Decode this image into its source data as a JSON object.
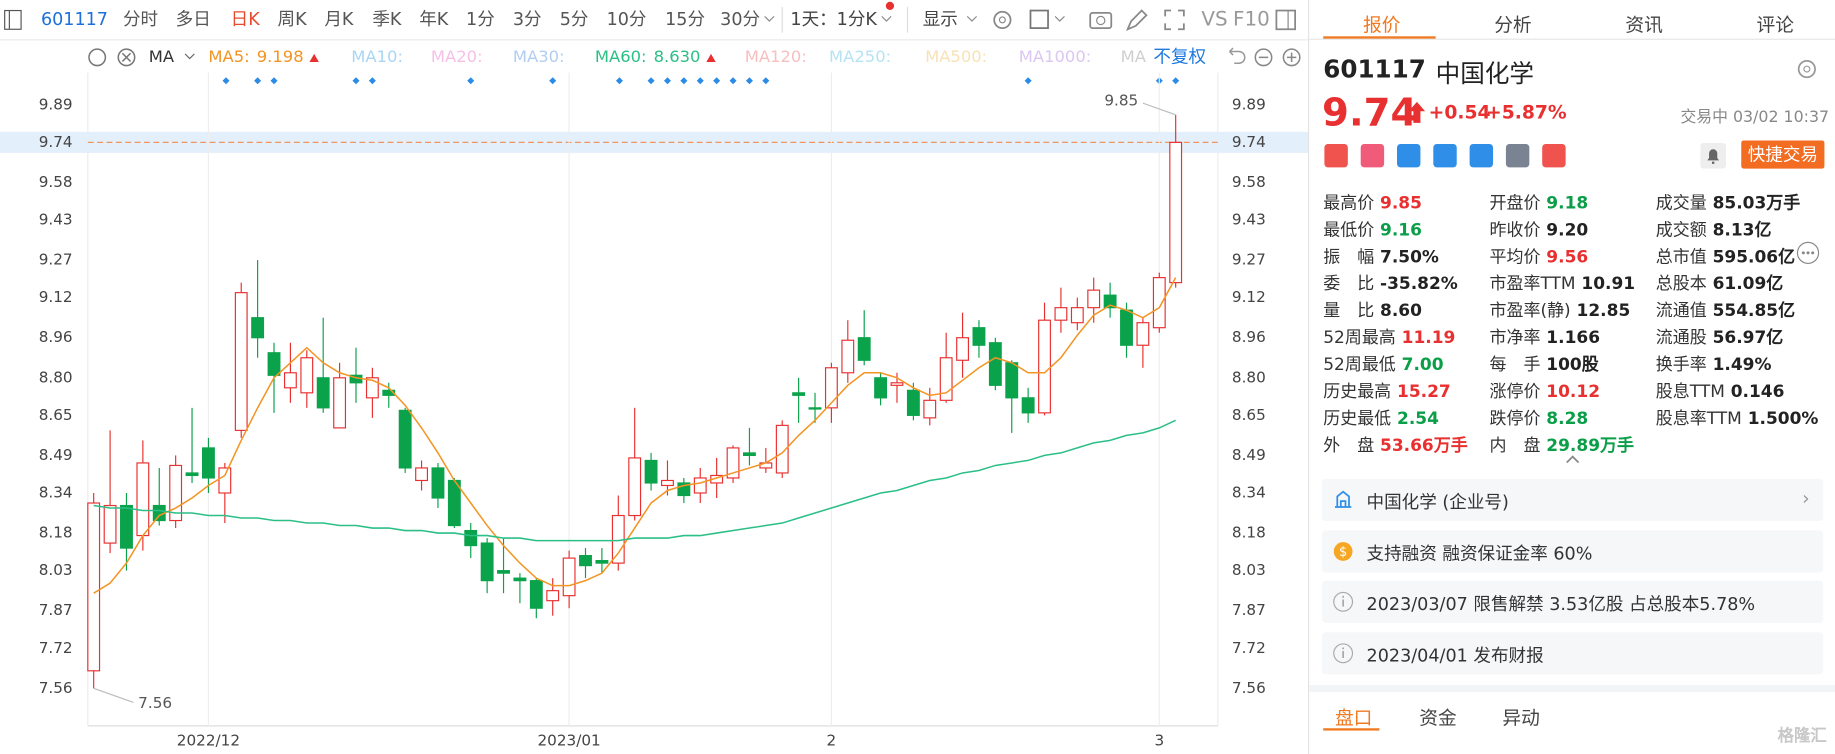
{
  "toolbar": {
    "code": "601117",
    "periods": [
      "分时",
      "多日",
      "日K",
      "周K",
      "月K",
      "季K",
      "年K",
      "1分",
      "3分",
      "5分",
      "10分",
      "15分",
      "30分"
    ],
    "active": 2,
    "range": "1天：1分K",
    "display": "显示",
    "extras": [
      "VS",
      "F10"
    ]
  },
  "ma_bar": {
    "label": "MA",
    "inactive": [
      {
        "name": "MA10:",
        "color": "#a9d6f5"
      },
      {
        "name": "MA20:",
        "color": "#f6bfe6"
      },
      {
        "name": "MA30:",
        "color": "#b1cdf2"
      },
      {
        "name": "MA120:",
        "color": "#f7c0c0"
      },
      {
        "name": "MA250:",
        "color": "#b5e3f3"
      },
      {
        "name": "MA500:",
        "color": "#f8e2b6"
      },
      {
        "name": "MA1000:",
        "color": "#dcc6f2"
      },
      {
        "name": "MA",
        "color": "#cfcfcf"
      }
    ],
    "adjust": "不复权"
  },
  "chart_data": {
    "type": "candlestick",
    "categories": [
      null,
      null,
      null,
      null,
      null,
      null,
      null,
      "2022/12",
      null,
      null,
      null,
      null,
      null,
      null,
      null,
      null,
      null,
      null,
      null,
      null,
      null,
      null,
      null,
      null,
      null,
      null,
      null,
      null,
      null,
      "2023/01",
      null,
      null,
      null,
      null,
      null,
      null,
      null,
      null,
      null,
      null,
      null,
      null,
      null,
      null,
      null,
      "2",
      null,
      null,
      null,
      null,
      null,
      null,
      null,
      null,
      null,
      null,
      null,
      null,
      null,
      null,
      null,
      null,
      null,
      null,
      null,
      "3",
      null
    ],
    "open": [
      7.63,
      8.14,
      8.29,
      8.17,
      8.29,
      8.23,
      8.42,
      8.52,
      8.34,
      8.59,
      9.04,
      8.9,
      8.76,
      8.74,
      8.8,
      8.6,
      8.81,
      8.72,
      8.75,
      8.67,
      8.39,
      8.44,
      8.39,
      8.19,
      8.14,
      8.03,
      8.0,
      7.99,
      7.91,
      7.93,
      8.09,
      8.07,
      8.06,
      8.25,
      8.47,
      8.37,
      8.38,
      8.34,
      8.38,
      8.4,
      8.5,
      8.44,
      8.42,
      8.74,
      8.68,
      8.68,
      8.82,
      8.96,
      8.8,
      8.77,
      8.75,
      8.64,
      8.71,
      8.87,
      9.0,
      8.94,
      8.86,
      8.72,
      8.66,
      9.03,
      9.02,
      9.08,
      9.13,
      9.07,
      8.93,
      9.0,
      9.18
    ],
    "high": [
      8.34,
      8.59,
      8.34,
      8.55,
      8.44,
      8.49,
      8.68,
      8.56,
      8.46,
      9.18,
      9.27,
      8.94,
      8.94,
      8.91,
      9.04,
      8.86,
      8.92,
      8.84,
      8.78,
      8.68,
      8.47,
      8.46,
      8.4,
      8.22,
      8.16,
      8.16,
      8.02,
      8.0,
      8.0,
      8.11,
      8.12,
      8.12,
      8.33,
      8.68,
      8.5,
      8.47,
      8.4,
      8.44,
      8.48,
      8.53,
      8.6,
      8.52,
      8.63,
      8.8,
      8.74,
      8.86,
      9.03,
      9.07,
      8.82,
      8.82,
      8.78,
      8.76,
      8.98,
      9.06,
      9.03,
      8.96,
      8.87,
      8.76,
      9.1,
      9.16,
      9.12,
      9.2,
      9.18,
      9.1,
      9.04,
      9.22,
      9.85
    ],
    "low": [
      7.56,
      8.1,
      8.03,
      8.11,
      8.21,
      8.2,
      8.38,
      8.34,
      8.22,
      8.56,
      8.88,
      8.66,
      8.7,
      8.68,
      8.66,
      8.6,
      8.7,
      8.64,
      8.68,
      8.42,
      8.35,
      8.28,
      8.2,
      8.08,
      7.94,
      7.94,
      7.9,
      7.84,
      7.85,
      7.88,
      8.0,
      8.02,
      8.03,
      8.23,
      8.35,
      8.33,
      8.3,
      8.3,
      8.32,
      8.38,
      8.45,
      8.42,
      8.4,
      8.62,
      8.62,
      8.62,
      8.78,
      8.85,
      8.69,
      8.7,
      8.63,
      8.61,
      8.7,
      8.8,
      8.88,
      8.75,
      8.58,
      8.62,
      8.65,
      8.98,
      8.99,
      9.02,
      9.04,
      8.88,
      8.84,
      8.98,
      9.16
    ],
    "close": [
      8.3,
      8.29,
      8.12,
      8.46,
      8.23,
      8.45,
      8.41,
      8.4,
      8.44,
      9.14,
      8.96,
      8.81,
      8.82,
      8.88,
      8.68,
      8.8,
      8.78,
      8.8,
      8.73,
      8.44,
      8.44,
      8.32,
      8.21,
      8.13,
      7.99,
      8.02,
      7.99,
      7.88,
      7.95,
      8.08,
      8.05,
      8.06,
      8.25,
      8.48,
      8.38,
      8.39,
      8.33,
      8.4,
      8.41,
      8.52,
      8.49,
      8.46,
      8.61,
      8.73,
      8.68,
      8.84,
      8.95,
      8.87,
      8.72,
      8.78,
      8.65,
      8.71,
      8.88,
      8.96,
      8.93,
      8.77,
      8.72,
      8.66,
      9.03,
      9.08,
      9.08,
      9.15,
      9.08,
      8.93,
      9.02,
      9.2,
      9.74
    ],
    "up_color": "#e93030",
    "down_color": "#0aa24a",
    "series": [
      {
        "name": "MA5:",
        "value_label": "9.198",
        "color": "#f39423",
        "values": [
          7.94,
          7.98,
          8.06,
          8.17,
          8.25,
          8.28,
          8.32,
          8.37,
          8.41,
          8.55,
          8.68,
          8.8,
          8.86,
          8.92,
          8.86,
          8.82,
          8.8,
          8.79,
          8.76,
          8.69,
          8.6,
          8.5,
          8.39,
          8.3,
          8.21,
          8.13,
          8.06,
          8.0,
          7.97,
          7.97,
          7.99,
          8.02,
          8.1,
          8.2,
          8.3,
          8.35,
          8.37,
          8.38,
          8.4,
          8.42,
          8.44,
          8.46,
          8.5,
          8.57,
          8.63,
          8.7,
          8.77,
          8.82,
          8.82,
          8.8,
          8.76,
          8.73,
          8.74,
          8.79,
          8.84,
          8.88,
          8.86,
          8.82,
          8.82,
          8.88,
          8.97,
          9.05,
          9.09,
          9.07,
          9.04,
          9.08,
          9.2
        ]
      },
      {
        "name": "MA60:",
        "value_label": "8.630",
        "color": "#2bbf87",
        "values": [
          8.29,
          8.28,
          8.28,
          8.27,
          8.27,
          8.26,
          8.26,
          8.25,
          8.25,
          8.24,
          8.24,
          8.23,
          8.23,
          8.22,
          8.22,
          8.21,
          8.21,
          8.2,
          8.2,
          8.19,
          8.19,
          8.18,
          8.18,
          8.17,
          8.17,
          8.16,
          8.16,
          8.15,
          8.15,
          8.15,
          8.15,
          8.15,
          8.15,
          8.16,
          8.16,
          8.16,
          8.17,
          8.17,
          8.18,
          8.19,
          8.2,
          8.21,
          8.22,
          8.24,
          8.26,
          8.28,
          8.3,
          8.32,
          8.34,
          8.35,
          8.37,
          8.39,
          8.4,
          8.42,
          8.43,
          8.45,
          8.46,
          8.47,
          8.49,
          8.5,
          8.52,
          8.54,
          8.55,
          8.57,
          8.58,
          8.6,
          8.63
        ]
      }
    ],
    "ylim": [
      7.41,
      10.0
    ],
    "yticks": [
      9.89,
      9.74,
      9.58,
      9.43,
      9.27,
      9.12,
      8.96,
      {
        "value": 8.8,
        "label": "8.80"
      },
      8.65,
      8.49,
      8.34,
      8.18,
      8.03,
      7.87,
      7.72,
      7.56
    ],
    "annotations": [
      "9.85",
      "7.56"
    ]
  },
  "quote": {
    "tabs": [
      "报价",
      "分析",
      "资讯",
      "评论"
    ],
    "code": "601117",
    "name": "中国化学",
    "price": "9.74",
    "change": "+0.54",
    "pct": "+5.87%",
    "status": "交易中 03/02 10:37",
    "trade_button": "快捷交易",
    "stats": [
      [
        {
          "label": "最高价",
          "value": "9.85",
          "color": "#e93030"
        },
        {
          "label": "最低价",
          "value": "9.16",
          "color": "#0a9e48"
        },
        {
          "label": "振　幅",
          "value": "7.50%",
          "color": "#222"
        },
        {
          "label": "委　比",
          "value": "-35.82%",
          "color": "#222"
        },
        {
          "label": "量　比",
          "value": "8.60",
          "color": "#222"
        },
        {
          "label": "52周最高",
          "value": "11.19",
          "color": "#e93030"
        },
        {
          "label": "52周最低",
          "value": "7.00",
          "color": "#0a9e48"
        },
        {
          "label": "历史最高",
          "value": "15.27",
          "color": "#e93030"
        },
        {
          "label": "历史最低",
          "value": "2.54",
          "color": "#0a9e48"
        },
        {
          "label": "外　盘",
          "value": "53.66万手",
          "color": "#e93030"
        }
      ],
      [
        {
          "label": "开盘价",
          "value": "9.18",
          "color": "#0a9e48"
        },
        {
          "label": "昨收价",
          "value": "9.20",
          "color": "#222"
        },
        {
          "label": "平均价",
          "value": "9.56",
          "color": "#e93030"
        },
        {
          "label": "市盈率TTM",
          "value": "10.91",
          "color": "#222"
        },
        {
          "label": "市盈率(静)",
          "value": "12.85",
          "color": "#222"
        },
        {
          "label": "市净率",
          "value": "1.166",
          "color": "#222"
        },
        {
          "label": "每　手",
          "value": "100股",
          "color": "#222"
        },
        {
          "label": "涨停价",
          "value": "10.12",
          "color": "#e93030"
        },
        {
          "label": "跌停价",
          "value": "8.28",
          "color": "#0a9e48"
        },
        {
          "label": "内　盘",
          "value": "29.89万手",
          "color": "#0a9e48"
        }
      ],
      [
        {
          "label": "成交量",
          "value": "85.03万手",
          "color": "#222"
        },
        {
          "label": "成交额",
          "value": "8.13亿",
          "color": "#222"
        },
        {
          "label": "总市值",
          "value": "595.06亿",
          "color": "#222"
        },
        {
          "label": "总股本",
          "value": "61.09亿",
          "color": "#222"
        },
        {
          "label": "流通值",
          "value": "554.85亿",
          "color": "#222"
        },
        {
          "label": "流通股",
          "value": "56.97亿",
          "color": "#222"
        },
        {
          "label": "换手率",
          "value": "1.49%",
          "color": "#222"
        },
        {
          "label": "股息TTM",
          "value": "0.146",
          "color": "#222"
        },
        {
          "label": "股息率TTM",
          "value": "1.500%",
          "color": "#222"
        }
      ]
    ],
    "notices": [
      "中国化学 (企业号)",
      "支持融资 融资保证金率 60%",
      "2023/03/07  限售解禁 3.53亿股 占总股本5.78%",
      "2023/04/01  发布财报"
    ],
    "bottom_tabs": [
      "盘口",
      "资金",
      "异动"
    ],
    "watermark": "格隆汇"
  }
}
